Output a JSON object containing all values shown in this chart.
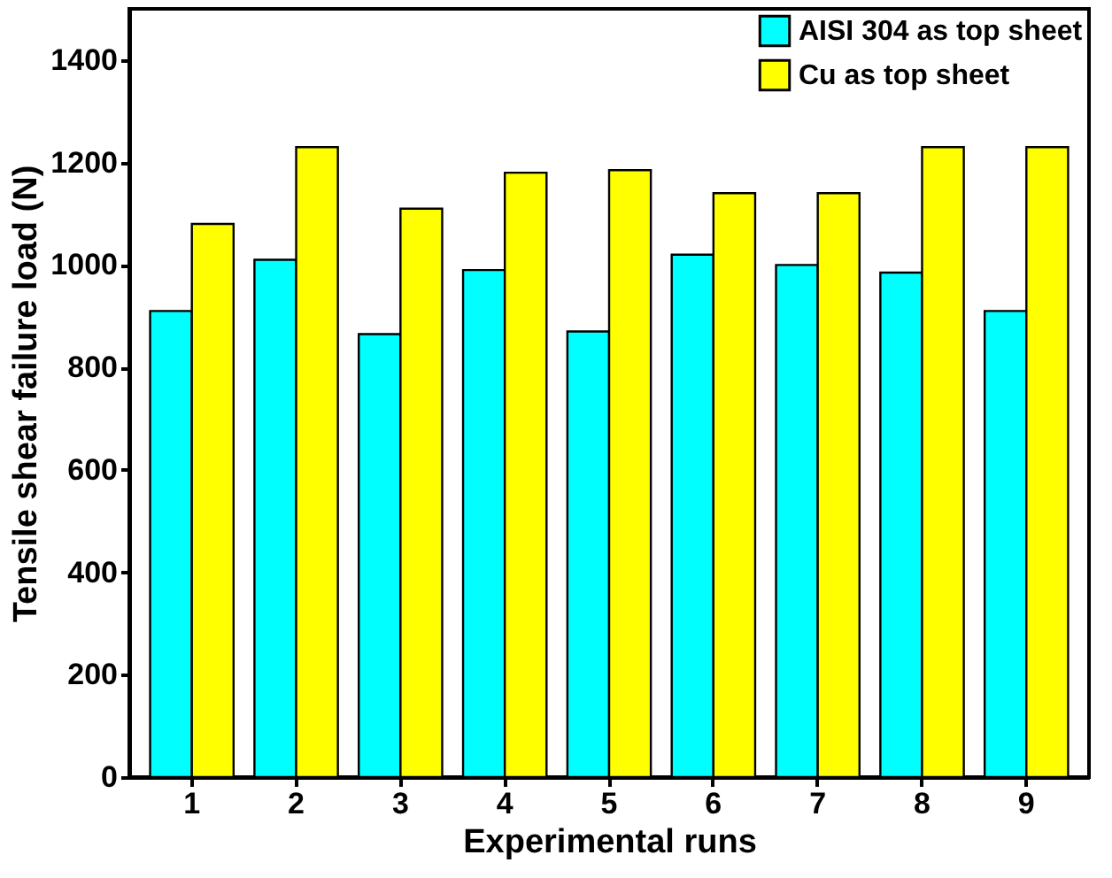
{
  "chart_data": {
    "type": "bar",
    "xlabel": "Experimental runs",
    "ylabel": "Tensile shear failure load (N)",
    "categories": [
      "1",
      "2",
      "3",
      "4",
      "5",
      "6",
      "7",
      "8",
      "9"
    ],
    "series": [
      {
        "name": "AISI 304 as top sheet",
        "color": "#00ffff",
        "values": [
          910,
          1010,
          865,
          990,
          870,
          1020,
          1000,
          985,
          910
        ]
      },
      {
        "name": "Cu as top sheet",
        "color": "#ffff00",
        "values": [
          1080,
          1230,
          1110,
          1180,
          1185,
          1140,
          1140,
          1230,
          1230
        ]
      }
    ],
    "ylim": [
      0,
      1500
    ],
    "yticks": [
      0,
      200,
      400,
      600,
      800,
      1000,
      1200,
      1400
    ],
    "grid": false,
    "legend": "top right"
  }
}
